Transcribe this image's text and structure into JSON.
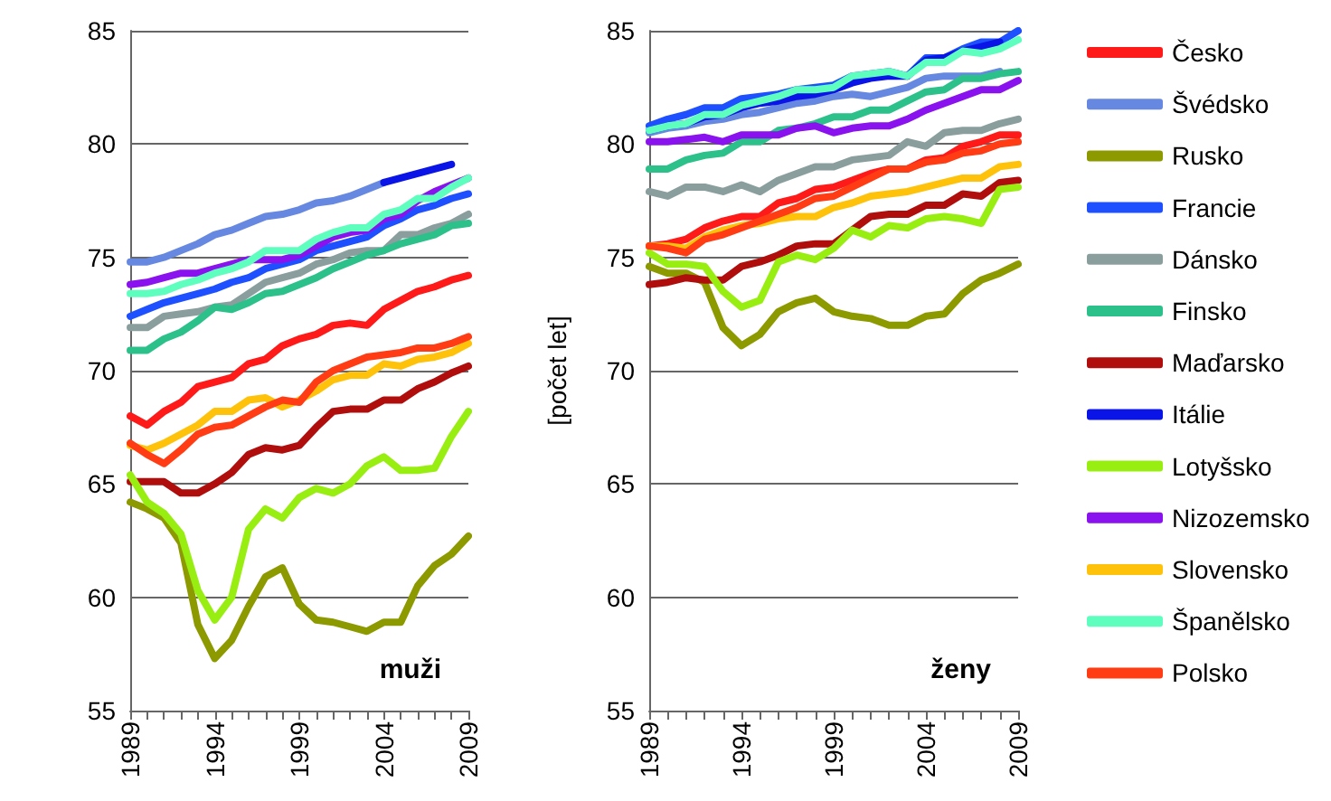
{
  "chart_data": [
    {
      "type": "line",
      "title": "muži",
      "x": [
        1989,
        1990,
        1991,
        1992,
        1993,
        1994,
        1995,
        1996,
        1997,
        1998,
        1999,
        2000,
        2001,
        2002,
        2003,
        2004,
        2005,
        2006,
        2007,
        2008,
        2009
      ],
      "xlim": [
        1989,
        2009
      ],
      "xticks": [
        1989,
        {
          "value": 1990,
          "label": null
        },
        {
          "value": 1991,
          "label": null
        },
        {
          "value": 1992,
          "label": null
        },
        {
          "value": 1993,
          "label": null
        },
        1994,
        {
          "value": 1995,
          "label": null
        },
        {
          "value": 1996,
          "label": null
        },
        {
          "value": 1997,
          "label": null
        },
        {
          "value": 1998,
          "label": null
        },
        1999,
        {
          "value": 2000,
          "label": null
        },
        {
          "value": 2001,
          "label": null
        },
        {
          "value": 2002,
          "label": null
        },
        {
          "value": 2003,
          "label": null
        },
        2004,
        {
          "value": 2005,
          "label": null
        },
        {
          "value": 2006,
          "label": null
        },
        {
          "value": 2007,
          "label": null
        },
        {
          "value": 2008,
          "label": null
        },
        2009
      ],
      "ylim": [
        55,
        85
      ],
      "yticks": [
        55,
        60,
        65,
        70,
        75,
        80,
        85
      ],
      "grid": "y",
      "legend": false,
      "marker": "none",
      "line_style": "solid",
      "series": [
        {
          "color": "#ff1a1a",
          "values": [
            68.0,
            67.6,
            68.2,
            68.6,
            69.3,
            69.5,
            69.7,
            70.3,
            70.5,
            71.1,
            71.4,
            71.6,
            72.0,
            72.1,
            72.0,
            72.7,
            73.1,
            73.5,
            73.7,
            74.0,
            74.2
          ]
        },
        {
          "color": "#6688e0",
          "values": [
            74.8,
            74.8,
            75.0,
            75.3,
            75.6,
            76.0,
            76.2,
            76.5,
            76.8,
            76.9,
            77.1,
            77.4,
            77.5,
            77.7,
            78.0,
            78.3,
            null,
            null,
            null,
            null,
            null
          ]
        },
        {
          "color": "#8c9a00",
          "values": [
            64.2,
            63.9,
            63.5,
            62.4,
            58.8,
            57.3,
            58.1,
            59.6,
            60.9,
            61.3,
            59.7,
            59.0,
            58.9,
            58.7,
            58.5,
            58.9,
            58.9,
            60.5,
            61.4,
            61.9,
            62.7
          ]
        },
        {
          "color": "#1e50ff",
          "values": [
            72.4,
            72.7,
            73.0,
            73.2,
            73.4,
            73.6,
            73.9,
            74.1,
            74.5,
            74.7,
            74.9,
            75.3,
            75.5,
            75.7,
            75.9,
            76.4,
            76.7,
            77.1,
            77.3,
            77.6,
            77.8
          ]
        },
        {
          "color": "#8a9e9e",
          "values": [
            71.9,
            71.9,
            72.4,
            72.5,
            72.6,
            72.8,
            72.9,
            73.4,
            73.9,
            74.1,
            74.3,
            74.7,
            74.9,
            75.2,
            75.3,
            75.3,
            76.0,
            76.0,
            76.3,
            76.5,
            76.9
          ]
        },
        {
          "color": "#2cc08a",
          "values": [
            70.9,
            70.9,
            71.4,
            71.7,
            72.2,
            72.8,
            72.7,
            73.0,
            73.4,
            73.5,
            73.8,
            74.1,
            74.5,
            74.8,
            75.1,
            75.3,
            75.6,
            75.8,
            76.0,
            76.4,
            76.5
          ]
        },
        {
          "color": "#b00d0d",
          "values": [
            65.1,
            65.1,
            65.1,
            64.6,
            64.6,
            65.0,
            65.5,
            66.3,
            66.6,
            66.5,
            66.7,
            67.5,
            68.2,
            68.3,
            68.3,
            68.7,
            68.7,
            69.2,
            69.5,
            69.9,
            70.2
          ]
        },
        {
          "color": "#0a14e6",
          "values": [
            null,
            null,
            null,
            null,
            null,
            null,
            null,
            null,
            null,
            null,
            null,
            null,
            null,
            null,
            null,
            78.3,
            78.5,
            78.7,
            78.9,
            79.1,
            null
          ]
        },
        {
          "color": "#99ee11",
          "values": [
            65.4,
            64.2,
            63.7,
            62.8,
            60.3,
            59.0,
            60.0,
            63.0,
            63.9,
            63.5,
            64.4,
            64.8,
            64.6,
            65.0,
            65.8,
            66.2,
            65.6,
            65.6,
            65.7,
            67.1,
            68.2
          ]
        },
        {
          "color": "#8a12ee",
          "values": [
            73.8,
            73.9,
            74.1,
            74.3,
            74.3,
            74.5,
            74.7,
            74.9,
            74.9,
            74.9,
            75.1,
            75.5,
            75.9,
            76.1,
            76.2,
            76.7,
            76.9,
            77.5,
            77.9,
            78.2,
            78.5
          ]
        },
        {
          "color": "#ffc20a",
          "values": [
            66.7,
            66.5,
            66.8,
            67.2,
            67.6,
            68.2,
            68.2,
            68.7,
            68.8,
            68.4,
            68.7,
            69.1,
            69.6,
            69.8,
            69.8,
            70.3,
            70.2,
            70.5,
            70.6,
            70.8,
            71.2
          ]
        },
        {
          "color": "#5effbe",
          "values": [
            73.4,
            73.4,
            73.5,
            73.8,
            74.0,
            74.3,
            74.5,
            74.8,
            75.3,
            75.3,
            75.3,
            75.8,
            76.1,
            76.3,
            76.3,
            76.9,
            77.1,
            77.6,
            77.6,
            78.1,
            78.5
          ]
        },
        {
          "color": "#ff3c14",
          "values": [
            66.8,
            66.3,
            65.9,
            66.5,
            67.2,
            67.5,
            67.6,
            68.0,
            68.4,
            68.7,
            68.6,
            69.5,
            70.0,
            70.3,
            70.6,
            70.7,
            70.8,
            71.0,
            71.0,
            71.2,
            71.5
          ]
        }
      ]
    },
    {
      "type": "line",
      "title": "ženy",
      "ylabel": "[počet let]",
      "x": [
        1989,
        1990,
        1991,
        1992,
        1993,
        1994,
        1995,
        1996,
        1997,
        1998,
        1999,
        2000,
        2001,
        2002,
        2003,
        2004,
        2005,
        2006,
        2007,
        2008,
        2009
      ],
      "xlim": [
        1989,
        2009
      ],
      "xticks": [
        1989,
        {
          "value": 1990,
          "label": null
        },
        {
          "value": 1991,
          "label": null
        },
        {
          "value": 1992,
          "label": null
        },
        {
          "value": 1993,
          "label": null
        },
        1994,
        {
          "value": 1995,
          "label": null
        },
        {
          "value": 1996,
          "label": null
        },
        {
          "value": 1997,
          "label": null
        },
        {
          "value": 1998,
          "label": null
        },
        1999,
        {
          "value": 2000,
          "label": null
        },
        {
          "value": 2001,
          "label": null
        },
        {
          "value": 2002,
          "label": null
        },
        {
          "value": 2003,
          "label": null
        },
        2004,
        {
          "value": 2005,
          "label": null
        },
        {
          "value": 2006,
          "label": null
        },
        {
          "value": 2007,
          "label": null
        },
        {
          "value": 2008,
          "label": null
        },
        2009
      ],
      "ylim": [
        55,
        85
      ],
      "yticks": [
        55,
        60,
        65,
        70,
        75,
        80,
        85
      ],
      "grid": "y",
      "legend": "right",
      "marker": "none",
      "line_style": "solid",
      "series": [
        {
          "name": "Česko",
          "color": "#ff1a1a",
          "values": [
            75.5,
            75.6,
            75.8,
            76.3,
            76.6,
            76.8,
            76.8,
            77.4,
            77.6,
            78.0,
            78.1,
            78.4,
            78.7,
            78.9,
            78.9,
            79.3,
            79.4,
            79.9,
            80.1,
            80.4,
            80.4
          ]
        },
        {
          "name": "Švédsko",
          "color": "#6688e0",
          "values": [
            80.5,
            80.7,
            80.8,
            81.0,
            81.1,
            81.3,
            81.4,
            81.6,
            81.8,
            81.9,
            82.1,
            82.2,
            82.1,
            82.3,
            82.5,
            82.9,
            83.0,
            83.0,
            83.0,
            83.2,
            null
          ]
        },
        {
          "name": "Rusko",
          "color": "#8c9a00",
          "values": [
            74.6,
            74.3,
            74.3,
            73.9,
            71.9,
            71.1,
            71.6,
            72.6,
            73.0,
            73.2,
            72.6,
            72.4,
            72.3,
            72.0,
            72.0,
            72.4,
            72.5,
            73.4,
            74.0,
            74.3,
            74.7
          ]
        },
        {
          "name": "Francie",
          "color": "#1e50ff",
          "values": [
            80.8,
            81.1,
            81.3,
            81.6,
            81.6,
            82.0,
            82.1,
            82.2,
            82.4,
            82.5,
            82.6,
            83.0,
            83.1,
            83.2,
            83.0,
            83.8,
            83.8,
            84.2,
            84.5,
            84.5,
            85.0
          ]
        },
        {
          "name": "Dánsko",
          "color": "#8a9e9e",
          "values": [
            77.9,
            77.7,
            78.1,
            78.1,
            77.9,
            78.2,
            77.9,
            78.4,
            78.7,
            79.0,
            79.0,
            79.3,
            79.4,
            79.5,
            80.1,
            79.9,
            80.5,
            80.6,
            80.6,
            80.9,
            81.1
          ]
        },
        {
          "name": "Finsko",
          "color": "#2cc08a",
          "values": [
            78.9,
            78.9,
            79.3,
            79.5,
            79.6,
            80.1,
            80.1,
            80.6,
            80.7,
            80.9,
            81.2,
            81.2,
            81.5,
            81.5,
            81.9,
            82.3,
            82.4,
            82.9,
            82.9,
            83.1,
            83.2
          ]
        },
        {
          "name": "Maďarsko",
          "color": "#b00d0d",
          "values": [
            73.8,
            73.9,
            74.1,
            74.0,
            74.0,
            74.6,
            74.8,
            75.1,
            75.5,
            75.6,
            75.6,
            76.2,
            76.8,
            76.9,
            76.9,
            77.3,
            77.3,
            77.8,
            77.7,
            78.3,
            78.4
          ]
        },
        {
          "name": "Itálie",
          "color": "#0a14e6",
          "values": [
            80.6,
            80.8,
            80.9,
            81.2,
            81.3,
            81.6,
            81.8,
            81.9,
            82.1,
            82.2,
            82.4,
            82.7,
            82.9,
            83.0,
            83.0,
            83.7,
            83.8,
            84.1,
            84.3,
            84.5,
            null
          ]
        },
        {
          "name": "Lotyšsko",
          "color": "#99ee11",
          "values": [
            75.2,
            74.7,
            74.7,
            74.6,
            73.5,
            72.8,
            73.1,
            74.8,
            75.1,
            74.9,
            75.4,
            76.2,
            75.9,
            76.4,
            76.3,
            76.7,
            76.8,
            76.7,
            76.5,
            78.0,
            78.1
          ]
        },
        {
          "name": "Nizozemsko",
          "color": "#8a12ee",
          "values": [
            80.1,
            80.1,
            80.2,
            80.3,
            80.1,
            80.4,
            80.4,
            80.4,
            80.7,
            80.8,
            80.5,
            80.7,
            80.8,
            80.8,
            81.1,
            81.5,
            81.8,
            82.1,
            82.4,
            82.4,
            82.8
          ]
        },
        {
          "name": "Slovensko",
          "color": "#ffc20a",
          "values": [
            75.5,
            75.5,
            75.4,
            75.9,
            76.2,
            76.4,
            76.5,
            76.7,
            76.8,
            76.8,
            77.2,
            77.4,
            77.7,
            77.8,
            77.9,
            78.1,
            78.3,
            78.5,
            78.5,
            79.0,
            79.1
          ]
        },
        {
          "name": "Španělsko",
          "color": "#5effbe",
          "values": [
            80.6,
            80.8,
            80.9,
            81.3,
            81.3,
            81.7,
            81.9,
            82.1,
            82.4,
            82.4,
            82.5,
            83.0,
            83.1,
            83.2,
            83.0,
            83.6,
            83.6,
            84.1,
            84.0,
            84.2,
            84.6
          ]
        },
        {
          "name": "Polsko",
          "color": "#ff3c14",
          "values": [
            75.5,
            75.4,
            75.2,
            75.8,
            76.0,
            76.3,
            76.6,
            76.9,
            77.2,
            77.6,
            77.7,
            78.1,
            78.5,
            78.9,
            78.9,
            79.2,
            79.3,
            79.6,
            79.7,
            80.0,
            80.1
          ]
        }
      ]
    }
  ]
}
